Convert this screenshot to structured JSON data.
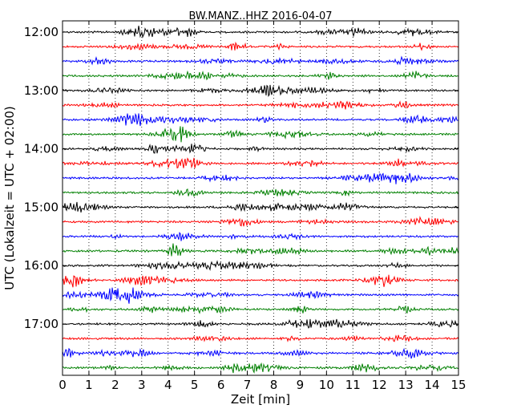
{
  "chart_data": {
    "type": "line",
    "title": "BW.MANZ..HHZ 2016-04-07",
    "xlabel": "Zeit  [min]",
    "ylabel": "UTC (Lokalzeit = UTC + 02:00)",
    "xlim": [
      0,
      15
    ],
    "x_ticks": [
      0,
      1,
      2,
      3,
      4,
      5,
      6,
      7,
      8,
      9,
      10,
      11,
      12,
      13,
      14,
      15
    ],
    "y_tick_labels": [
      "12:00",
      "13:00",
      "14:00",
      "15:00",
      "16:00",
      "17:00"
    ],
    "grid": "vertical dotted",
    "trace_colors": [
      "#000000",
      "#ff0000",
      "#0000ff",
      "#008000"
    ],
    "traces": [
      {
        "start": "12:00",
        "color": "#000000"
      },
      {
        "start": "12:15",
        "color": "#ff0000"
      },
      {
        "start": "12:30",
        "color": "#0000ff"
      },
      {
        "start": "12:45",
        "color": "#008000"
      },
      {
        "start": "13:00",
        "color": "#000000"
      },
      {
        "start": "13:15",
        "color": "#ff0000"
      },
      {
        "start": "13:30",
        "color": "#0000ff"
      },
      {
        "start": "13:45",
        "color": "#008000"
      },
      {
        "start": "14:00",
        "color": "#000000"
      },
      {
        "start": "14:15",
        "color": "#ff0000"
      },
      {
        "start": "14:30",
        "color": "#0000ff"
      },
      {
        "start": "14:45",
        "color": "#008000"
      },
      {
        "start": "15:00",
        "color": "#000000"
      },
      {
        "start": "15:15",
        "color": "#ff0000"
      },
      {
        "start": "15:30",
        "color": "#0000ff"
      },
      {
        "start": "15:45",
        "color": "#008000"
      },
      {
        "start": "16:00",
        "color": "#000000"
      },
      {
        "start": "16:15",
        "color": "#ff0000"
      },
      {
        "start": "16:30",
        "color": "#0000ff"
      },
      {
        "start": "16:45",
        "color": "#008000"
      },
      {
        "start": "17:00",
        "color": "#000000"
      },
      {
        "start": "17:15",
        "color": "#ff0000"
      },
      {
        "start": "17:30",
        "color": "#0000ff"
      },
      {
        "start": "17:45",
        "color": "#008000"
      }
    ]
  }
}
